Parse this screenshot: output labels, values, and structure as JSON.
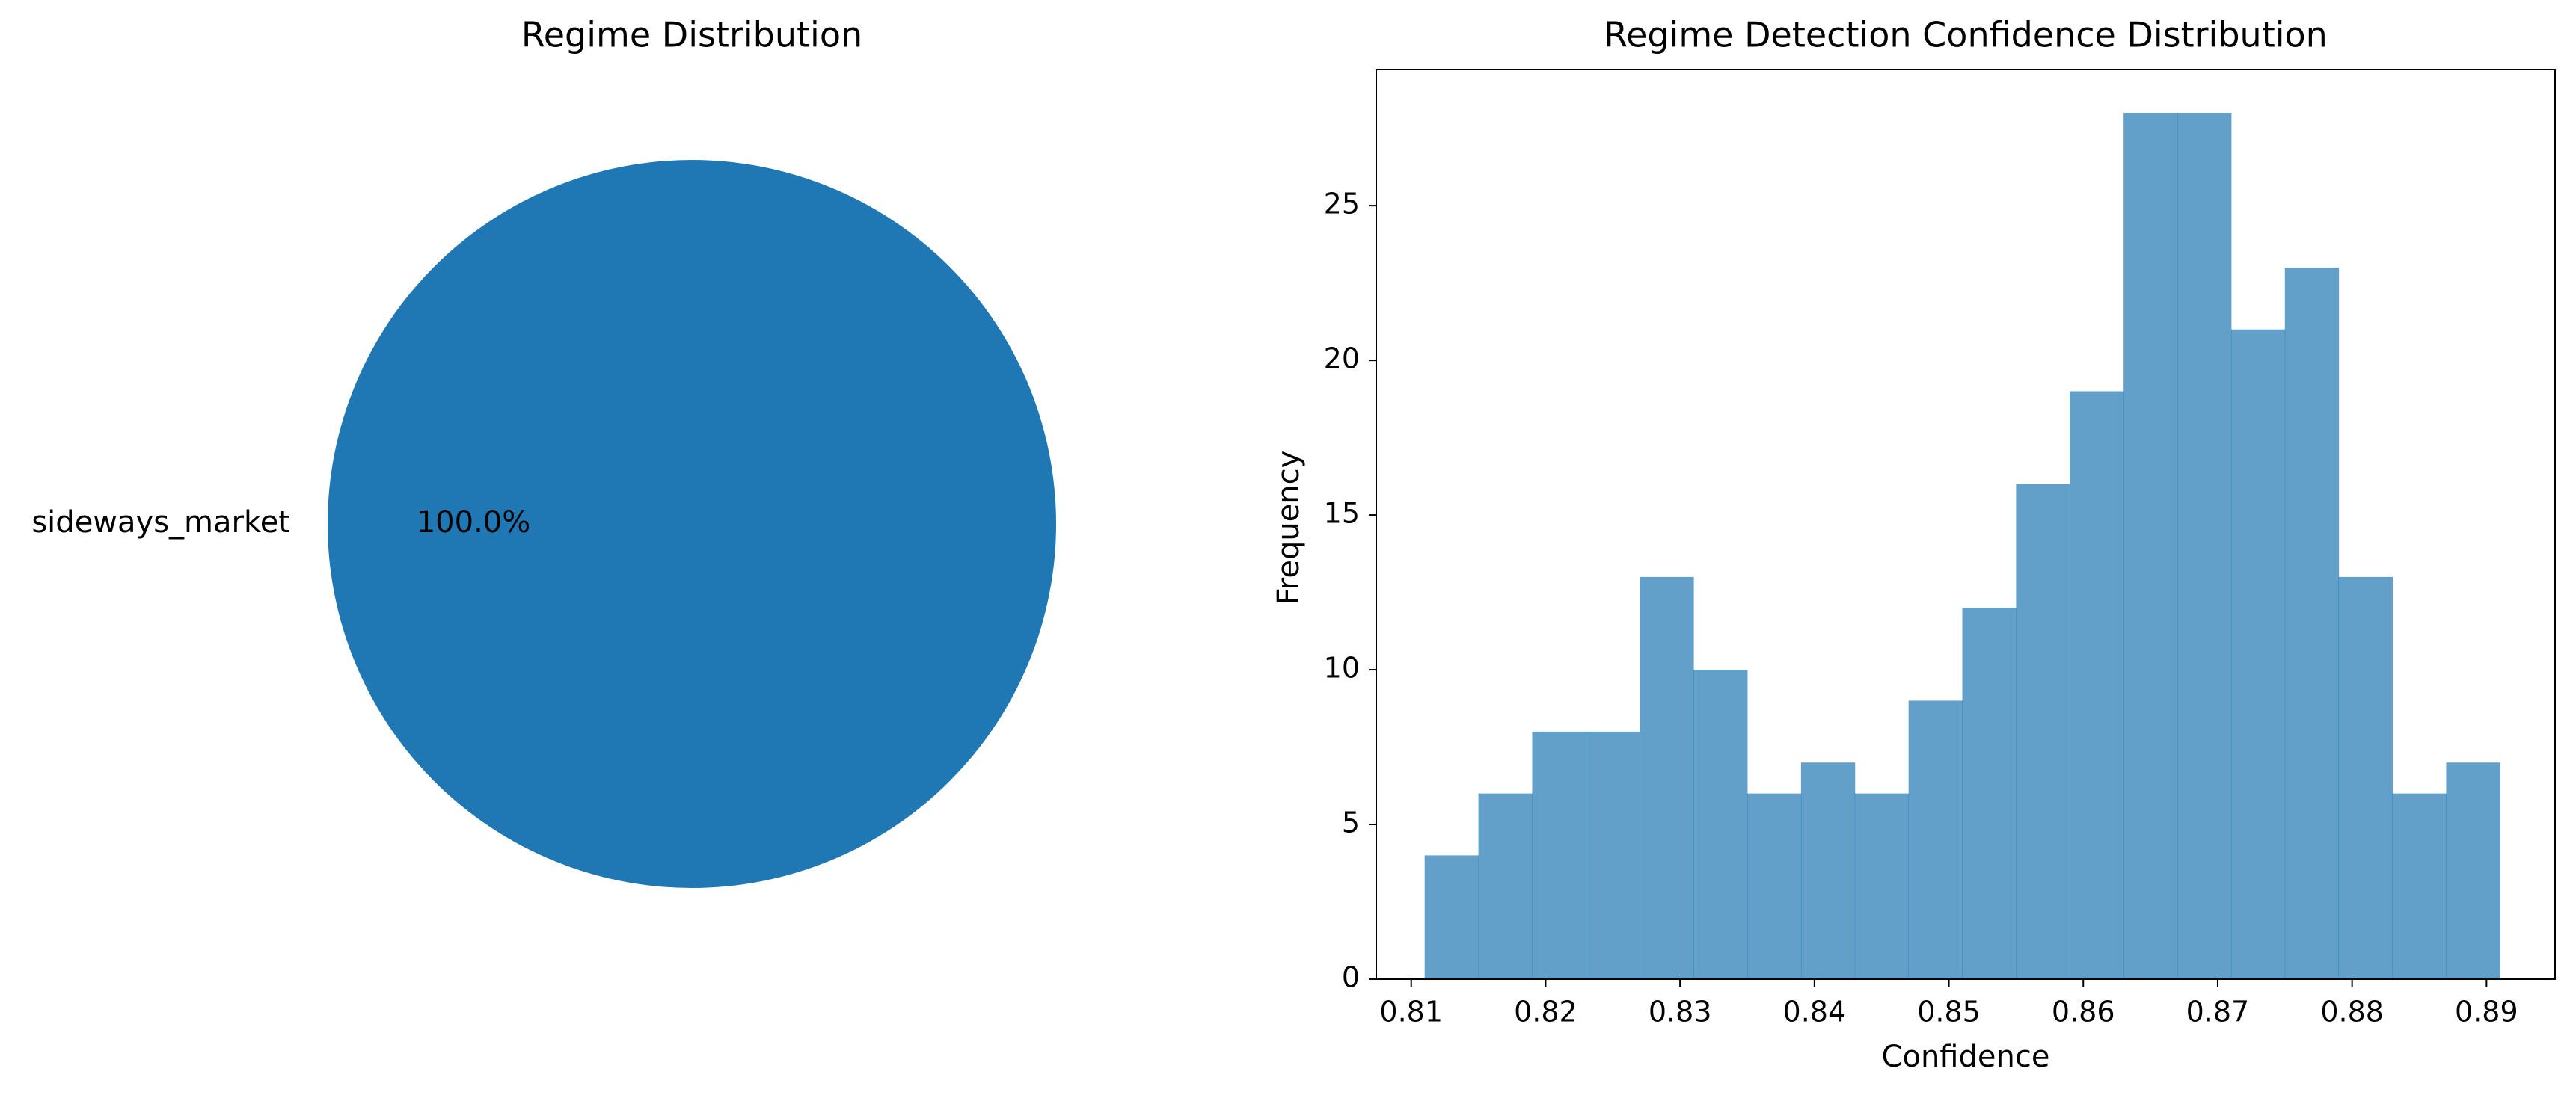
{
  "chart_data": [
    {
      "type": "pie",
      "title": "Regime Distribution",
      "labels": [
        "sideways_market"
      ],
      "values": [
        100.0
      ],
      "autopct_labels": [
        "100.0%"
      ],
      "colors": [
        "#1f77b4"
      ]
    },
    {
      "type": "bar",
      "subtype": "histogram",
      "title": "Regime Detection Confidence Distribution",
      "xlabel": "Confidence",
      "ylabel": "Frequency",
      "bin_start": 0.811,
      "bin_width": 0.004,
      "values": [
        4,
        6,
        8,
        8,
        13,
        10,
        6,
        7,
        6,
        9,
        12,
        16,
        19,
        28,
        28,
        21,
        23,
        13,
        6,
        7
      ],
      "xlim": [
        0.8074,
        0.8951
      ],
      "ylim": [
        0,
        29.4
      ],
      "xticks": [
        0.81,
        0.82,
        0.83,
        0.84,
        0.85,
        0.86,
        0.87,
        0.88,
        0.89
      ],
      "xtick_labels": [
        "0.81",
        "0.82",
        "0.83",
        "0.84",
        "0.85",
        "0.86",
        "0.87",
        "0.88",
        "0.89"
      ],
      "yticks": [
        0,
        5,
        10,
        15,
        20,
        25
      ],
      "ytick_labels": [
        "0",
        "5",
        "10",
        "15",
        "20",
        "25"
      ],
      "grid": false,
      "color": "#1f77b4",
      "alpha": 0.7
    }
  ]
}
